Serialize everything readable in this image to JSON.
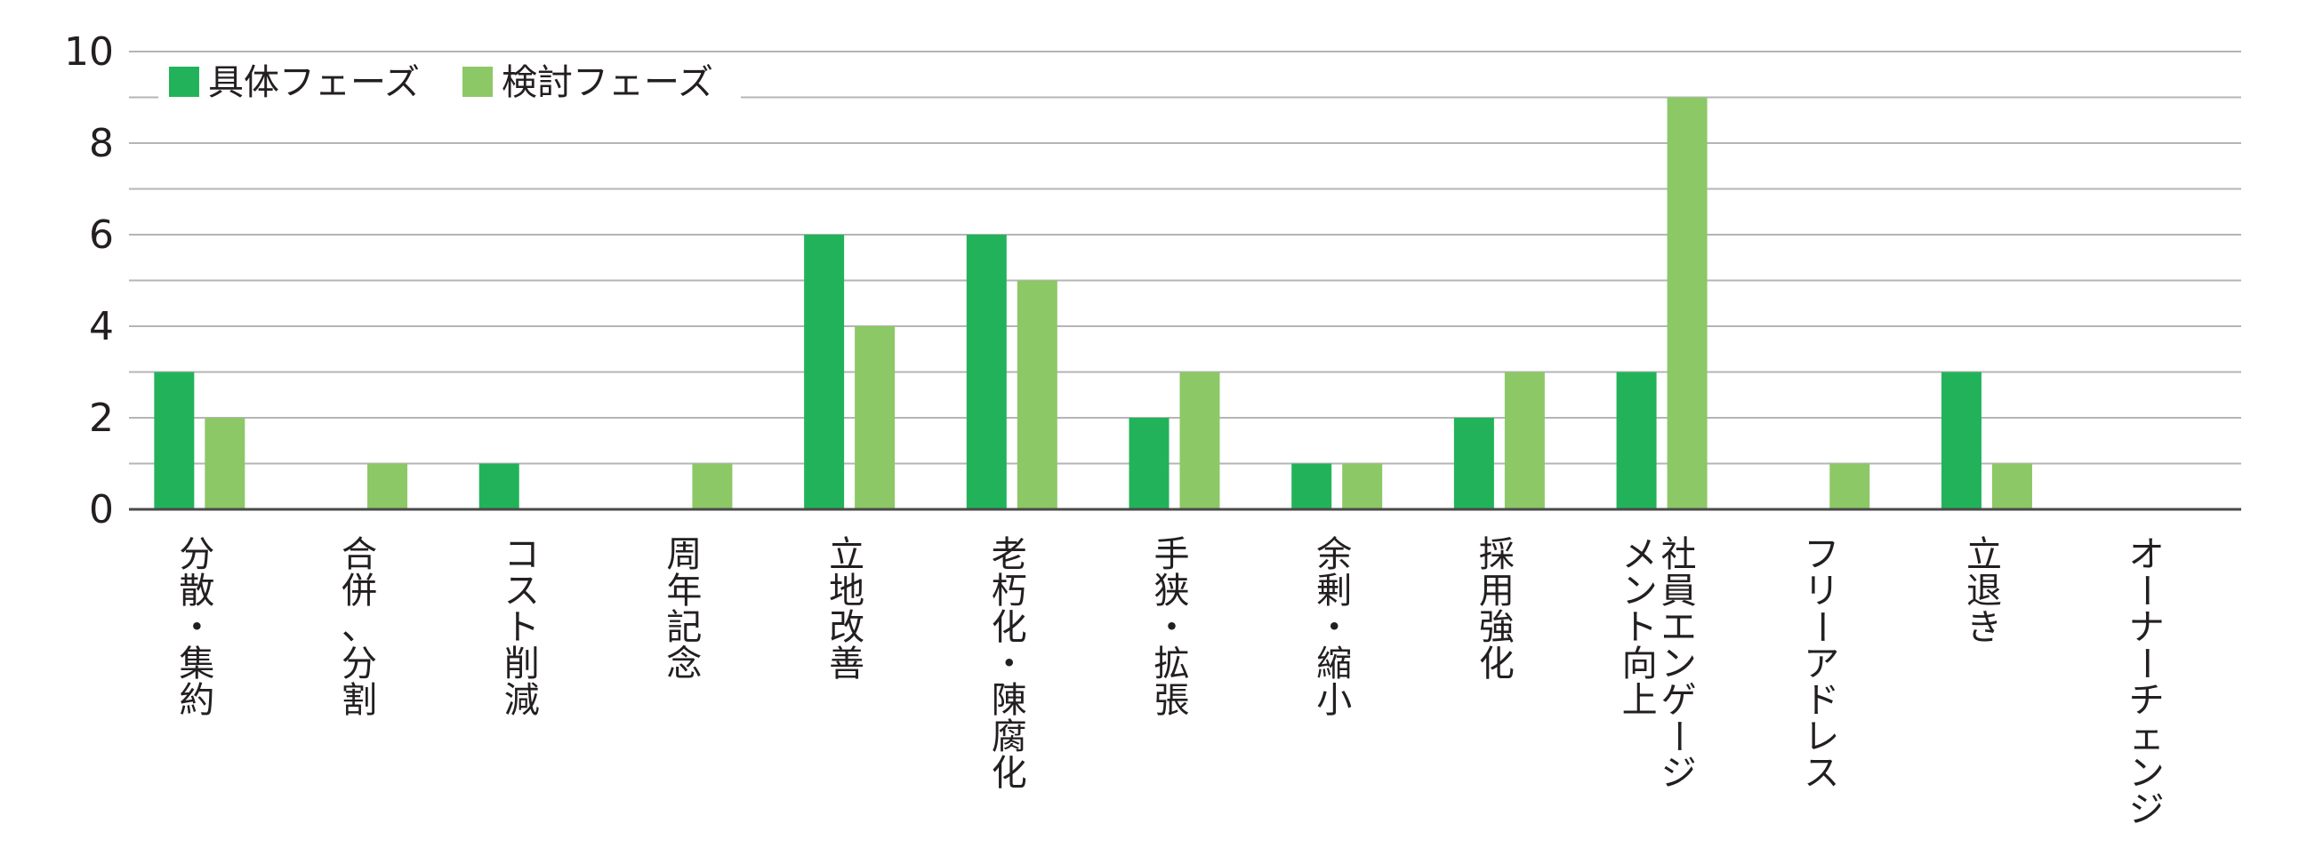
{
  "chart_data": {
    "type": "bar",
    "categories": [
      [
        "分",
        "散",
        "・",
        "集",
        "約"
      ],
      [
        "合",
        "併",
        "、",
        "分",
        "割"
      ],
      [
        "コ",
        "ス",
        "ト",
        "削",
        "減"
      ],
      [
        "周",
        "年",
        "記",
        "念"
      ],
      [
        "立",
        "地",
        "改",
        "善"
      ],
      [
        "老",
        "朽",
        "化",
        "・",
        "陳",
        "腐",
        "化"
      ],
      [
        "手",
        "狭",
        "・",
        "拡",
        "張"
      ],
      [
        "余",
        "剰",
        "・",
        "縮",
        "小"
      ],
      [
        "採",
        "用",
        "強",
        "化"
      ],
      [
        [
          "社",
          "員",
          "エ",
          "ン",
          "ゲ",
          "ー",
          "ジ"
        ],
        [
          "メ",
          "ン",
          "ト",
          "向",
          "上"
        ]
      ],
      [
        "フ",
        "リ",
        "ー",
        "ア",
        "ド",
        "レ",
        "ス"
      ],
      [
        "立",
        "退",
        "き"
      ],
      [
        "オ",
        "ー",
        "ナ",
        "ー",
        "チ",
        "ェ",
        "ン",
        "ジ"
      ]
    ],
    "series": [
      {
        "name": "具体フェーズ",
        "color": "#22b35a",
        "values": [
          3,
          0,
          1,
          0,
          6,
          6,
          2,
          1,
          2,
          3,
          0,
          3,
          0
        ]
      },
      {
        "name": "検討フェーズ",
        "color": "#8cc866",
        "values": [
          2,
          1,
          0,
          1,
          4,
          5,
          3,
          1,
          3,
          9,
          1,
          1,
          0
        ]
      }
    ],
    "ylim": [
      0,
      10
    ],
    "yticks": [
      0,
      2,
      4,
      6,
      8,
      10
    ],
    "ygrid_step": 1,
    "grid": true,
    "legend": "top-left"
  }
}
